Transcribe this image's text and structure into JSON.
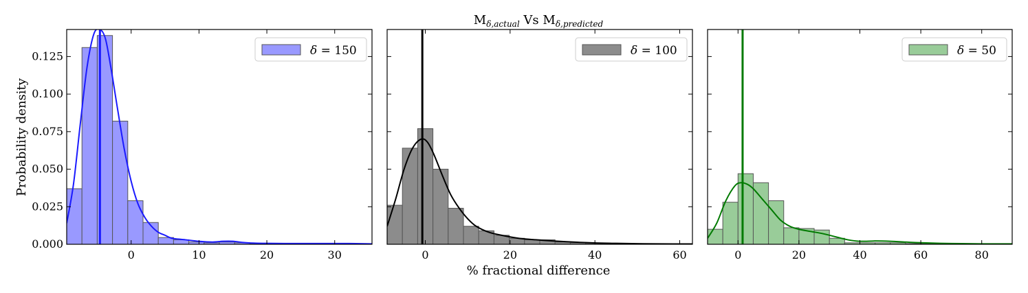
{
  "figure": {
    "title_main": "M",
    "title_sub1": "δ,actual",
    "title_vs": " Vs M",
    "title_sub2": "δ,predicted",
    "xlabel": "% fractional difference",
    "ylabel": "Probability density"
  },
  "chart_data": [
    {
      "type": "bar",
      "panel": "left",
      "legend": {
        "symbol": "δ",
        "text": " = 150",
        "position": "top-right"
      },
      "color": "#1a1aff",
      "fill": "#9999ff",
      "xlim": [
        -9.5,
        35.5
      ],
      "ylim": [
        0,
        0.143
      ],
      "xticks": [
        0,
        10,
        20,
        30
      ],
      "yticks": [
        0.0,
        0.025,
        0.05,
        0.075,
        0.1,
        0.125
      ],
      "ytick_labels": [
        "0.000",
        "0.025",
        "0.050",
        "0.075",
        "0.100",
        "0.125"
      ],
      "bin_edges": [
        -9.5,
        -7.25,
        -5.0,
        -2.75,
        -0.5,
        1.75,
        4.0,
        6.25,
        8.5,
        10.75,
        13.0,
        15.25,
        17.5,
        19.75,
        22.0,
        24.25,
        26.5,
        28.75,
        31.0,
        33.25,
        35.5
      ],
      "densities": [
        0.037,
        0.131,
        0.139,
        0.082,
        0.029,
        0.0145,
        0.0045,
        0.003,
        0.0015,
        0.001,
        0.0015,
        0.001,
        0.0005,
        0.0005,
        0.0003,
        0.0003,
        0.0003,
        0.0003,
        0.0003,
        0.0003
      ],
      "vline": -4.6,
      "kde": {
        "x": [
          -9.5,
          -8.5,
          -7.5,
          -6.5,
          -5.5,
          -4.6,
          -3.8,
          -3.0,
          -2.0,
          -1.0,
          0.0,
          1.0,
          2.0,
          3.0,
          4.0,
          5.0,
          6.0,
          8.0,
          10.0,
          12.0,
          13.5,
          15.0,
          16.5,
          18.0,
          20.0,
          24.0,
          28.0,
          32.0,
          35.5
        ],
        "y": [
          0.014,
          0.04,
          0.08,
          0.118,
          0.14,
          0.143,
          0.137,
          0.118,
          0.09,
          0.063,
          0.042,
          0.027,
          0.018,
          0.012,
          0.008,
          0.006,
          0.004,
          0.003,
          0.002,
          0.0015,
          0.002,
          0.002,
          0.0012,
          0.0008,
          0.0006,
          0.0005,
          0.0005,
          0.0005,
          0.0003
        ]
      }
    },
    {
      "type": "bar",
      "panel": "middle",
      "legend": {
        "symbol": "δ",
        "text": " = 100",
        "position": "top-right"
      },
      "color": "#000000",
      "fill": "#8c8c8c",
      "xlim": [
        -9.0,
        63.0
      ],
      "ylim": [
        0,
        0.143
      ],
      "xticks": [
        0,
        20,
        40,
        60
      ],
      "yticks": [
        0.0,
        0.025,
        0.05,
        0.075,
        0.1,
        0.125
      ],
      "ytick_labels": [
        "",
        "",
        "",
        "",
        "",
        ""
      ],
      "bin_edges": [
        -9.0,
        -5.4,
        -1.8,
        1.8,
        5.4,
        9.0,
        12.6,
        16.2,
        19.8,
        23.4,
        27.0,
        30.6,
        34.2,
        37.8,
        41.4,
        45.0,
        48.6,
        52.2,
        55.8,
        59.4,
        63.0
      ],
      "densities": [
        0.026,
        0.064,
        0.077,
        0.05,
        0.024,
        0.012,
        0.009,
        0.006,
        0.004,
        0.003,
        0.003,
        0.0015,
        0.001,
        0.0007,
        0.0005,
        0.0005,
        0.0004,
        0.0003,
        0.0003,
        0.0003
      ],
      "vline": -0.7,
      "kde": {
        "x": [
          -9.0,
          -7.0,
          -5.0,
          -3.0,
          -1.0,
          0.5,
          2.0,
          4.0,
          6.0,
          8.0,
          10.0,
          12.0,
          15.0,
          18.0,
          22.0,
          26.0,
          30.0,
          35.0,
          40.0,
          45.0,
          50.0,
          55.0,
          63.0
        ],
        "y": [
          0.012,
          0.03,
          0.05,
          0.064,
          0.07,
          0.068,
          0.06,
          0.046,
          0.033,
          0.024,
          0.017,
          0.012,
          0.008,
          0.006,
          0.004,
          0.003,
          0.0022,
          0.0015,
          0.0009,
          0.0006,
          0.0004,
          0.0003,
          0.0002
        ]
      }
    },
    {
      "type": "bar",
      "panel": "right",
      "legend": {
        "symbol": "δ",
        "text": " = 50",
        "position": "top-right"
      },
      "color": "#007a00",
      "fill": "#99cc99",
      "xlim": [
        -10.0,
        90.0
      ],
      "ylim": [
        0,
        0.143
      ],
      "xticks": [
        0,
        20,
        40,
        60,
        80
      ],
      "yticks": [
        0.0,
        0.025,
        0.05,
        0.075,
        0.1,
        0.125
      ],
      "ytick_labels": [
        "",
        "",
        "",
        "",
        "",
        ""
      ],
      "bin_edges": [
        -10.0,
        -5.0,
        0.0,
        5.0,
        10.0,
        15.0,
        20.0,
        25.0,
        30.0,
        35.0,
        40.0,
        45.0,
        50.0,
        55.0,
        60.0,
        65.0,
        70.0,
        75.0,
        80.0,
        85.0,
        90.0
      ],
      "densities": [
        0.01,
        0.028,
        0.047,
        0.041,
        0.029,
        0.011,
        0.0105,
        0.0095,
        0.004,
        0.001,
        0.001,
        0.001,
        0.001,
        0.0005,
        0.0005,
        0.0003,
        0.0003,
        0.0003,
        0.0003,
        0.0003
      ],
      "vline": 1.5,
      "kde": {
        "x": [
          -10.0,
          -7.0,
          -4.0,
          -1.0,
          1.0,
          3.0,
          5.0,
          8.0,
          11.0,
          14.0,
          17.0,
          20.0,
          24.0,
          28.0,
          32.0,
          36.0,
          40.0,
          45.0,
          50.0,
          55.0,
          60.0,
          70.0,
          80.0,
          90.0
        ],
        "y": [
          0.004,
          0.014,
          0.029,
          0.039,
          0.041,
          0.04,
          0.037,
          0.03,
          0.023,
          0.016,
          0.012,
          0.01,
          0.0085,
          0.007,
          0.005,
          0.003,
          0.002,
          0.0022,
          0.002,
          0.0015,
          0.001,
          0.0005,
          0.0003,
          0.0003
        ]
      }
    }
  ]
}
